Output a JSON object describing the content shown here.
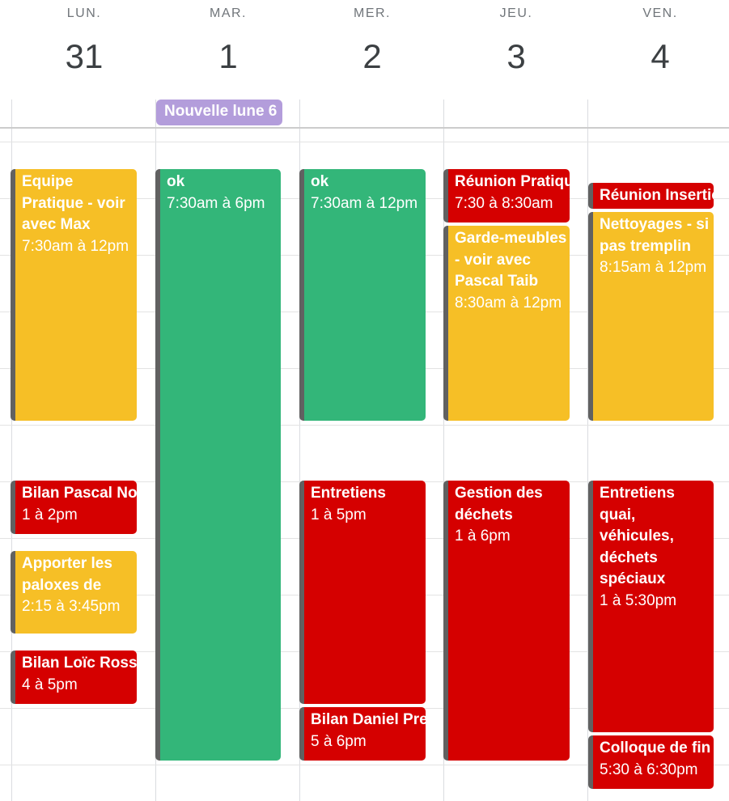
{
  "days": [
    {
      "dow": "LUN.",
      "num": "31"
    },
    {
      "dow": "MAR.",
      "num": "1"
    },
    {
      "dow": "MER.",
      "num": "2"
    },
    {
      "dow": "JEU.",
      "num": "3"
    },
    {
      "dow": "VEN.",
      "num": "4"
    }
  ],
  "allday_event": {
    "title": "Nouvelle lune 6"
  },
  "events": {
    "mon": [
      {
        "title": "Equipe Pratique - voir avec Max",
        "time": "7:30am à 12pm",
        "color": "#f6bf26"
      },
      {
        "title": "Bilan Pascal No",
        "time": "1 à 2pm",
        "color": "#d50000"
      },
      {
        "title": "Apporter les paloxes de",
        "time": "2:15 à 3:45pm",
        "color": "#f6bf26"
      },
      {
        "title": "Bilan Loïc Rosse",
        "time": "4 à 5pm",
        "color": "#d50000"
      }
    ],
    "tue": [
      {
        "title": "ok",
        "time": "7:30am à 6pm",
        "color": "#33b679"
      }
    ],
    "wed": [
      {
        "title": "ok",
        "time": "7:30am à 12pm",
        "color": "#33b679"
      },
      {
        "title": "Entretiens",
        "time": "1 à 5pm",
        "color": "#d50000"
      },
      {
        "title": "Bilan Daniel Pre",
        "time": "5 à 6pm",
        "color": "#d50000"
      }
    ],
    "thu": [
      {
        "title": "Réunion Pratiqu",
        "time": "7:30 à 8:30am",
        "color": "#d50000"
      },
      {
        "title": "Garde-meubles - voir avec Pascal Taib",
        "time": "8:30am à 12pm",
        "color": "#f6bf26"
      },
      {
        "title": "Gestion des déchets",
        "time": "1 à 6pm",
        "color": "#d50000"
      }
    ],
    "fri": [
      {
        "title": "Réunion Insertio",
        "color": "#d50000"
      },
      {
        "title": "Nettoyages - si pas tremplin",
        "time": "8:15am à 12pm",
        "color": "#f6bf26"
      },
      {
        "title": "Entretiens quai, véhicules, déchets spéciaux",
        "time": "1 à 5:30pm",
        "color": "#d50000"
      },
      {
        "title": "Colloque de fin",
        "time": "5:30 à 6:30pm",
        "color": "#d50000"
      }
    ]
  }
}
